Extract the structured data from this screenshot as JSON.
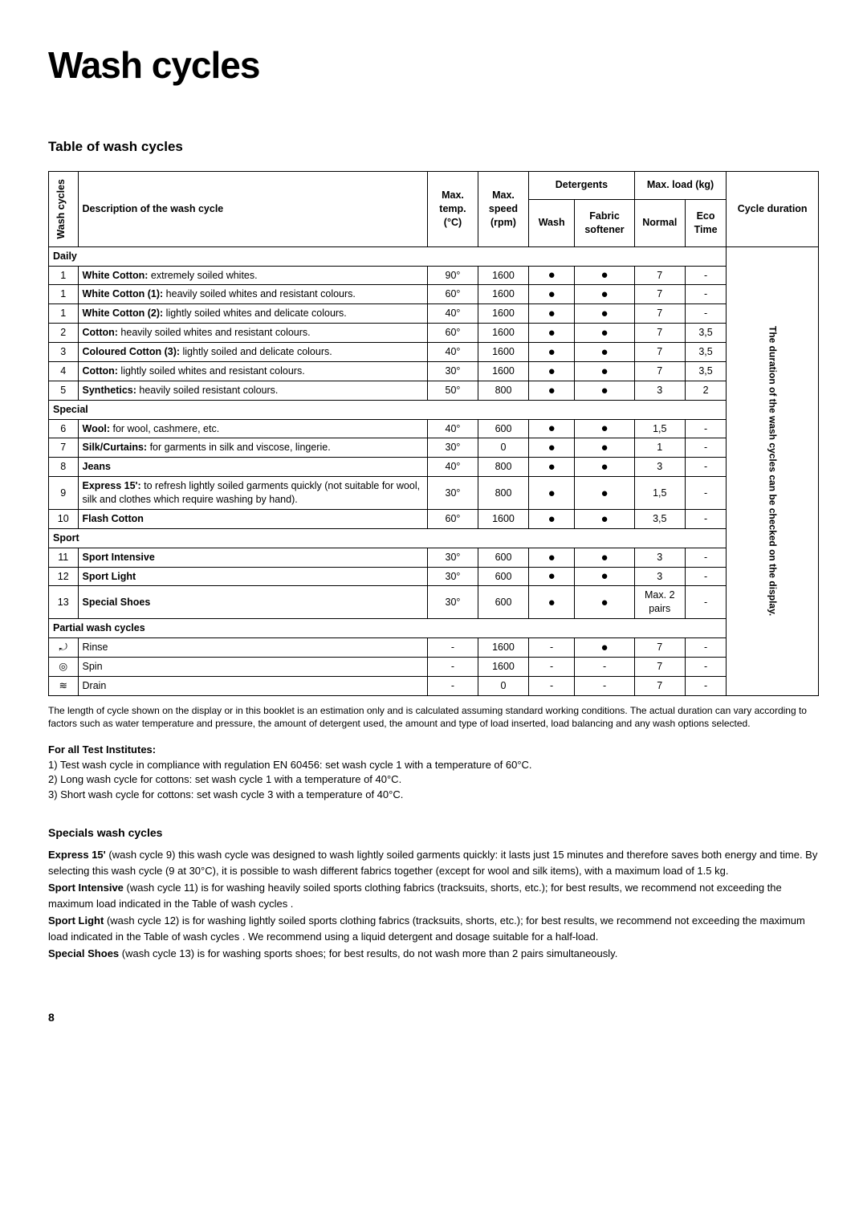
{
  "title": "Wash cycles",
  "tableHeading": "Table of wash cycles",
  "headers": {
    "washCycles": "Wash cycles",
    "description": "Description of the wash cycle",
    "maxTemp": "Max. temp. (°C)",
    "maxSpeed": "Max. speed (rpm)",
    "detergents": "Detergents",
    "wash": "Wash",
    "fabricSoftener": "Fabric softener",
    "maxLoad": "Max. load (kg)",
    "normal": "Normal",
    "ecoTime": "Eco Time",
    "cycleDuration": "Cycle duration"
  },
  "durationNote": "The duration of the wash cycles can be checked on the display.",
  "groups": [
    {
      "label": "Daily",
      "rows": [
        {
          "num": "1",
          "descBold": "White Cotton:",
          "descRest": " extremely soiled whites.",
          "temp": "90°",
          "speed": "1600",
          "wash": "●",
          "soft": "●",
          "normal": "7",
          "eco": "-"
        },
        {
          "num": "1",
          "descBold": "White Cotton (1):",
          "descRest": " heavily soiled whites and resistant colours.",
          "temp": "60°",
          "speed": "1600",
          "wash": "●",
          "soft": "●",
          "normal": "7",
          "eco": "-"
        },
        {
          "num": "1",
          "descBold": "White Cotton (2):",
          "descRest": " lightly soiled whites and delicate colours.",
          "temp": "40°",
          "speed": "1600",
          "wash": "●",
          "soft": "●",
          "normal": "7",
          "eco": "-"
        },
        {
          "num": "2",
          "descBold": "Cotton:",
          "descRest": " heavily soiled whites and resistant colours.",
          "temp": "60°",
          "speed": "1600",
          "wash": "●",
          "soft": "●",
          "normal": "7",
          "eco": "3,5"
        },
        {
          "num": "3",
          "descBold": "Coloured Cotton (3):",
          "descRest": " lightly soiled and delicate colours.",
          "temp": "40°",
          "speed": "1600",
          "wash": "●",
          "soft": "●",
          "normal": "7",
          "eco": "3,5"
        },
        {
          "num": "4",
          "descBold": "Cotton:",
          "descRest": " lightly soiled whites and resistant colours.",
          "temp": "30°",
          "speed": "1600",
          "wash": "●",
          "soft": "●",
          "normal": "7",
          "eco": "3,5"
        },
        {
          "num": "5",
          "descBold": "Synthetics:",
          "descRest": " heavily soiled resistant colours.",
          "temp": "50°",
          "speed": "800",
          "wash": "●",
          "soft": "●",
          "normal": "3",
          "eco": "2"
        }
      ]
    },
    {
      "label": "Special",
      "rows": [
        {
          "num": "6",
          "descBold": "Wool:",
          "descRest": " for wool, cashmere, etc.",
          "temp": "40°",
          "speed": "600",
          "wash": "●",
          "soft": "●",
          "normal": "1,5",
          "eco": "-"
        },
        {
          "num": "7",
          "descBold": "Silk/Curtains:",
          "descRest": " for garments in silk and viscose, lingerie.",
          "temp": "30°",
          "speed": "0",
          "wash": "●",
          "soft": "●",
          "normal": "1",
          "eco": "-"
        },
        {
          "num": "8",
          "descBold": "Jeans",
          "descRest": "",
          "temp": "40°",
          "speed": "800",
          "wash": "●",
          "soft": "●",
          "normal": "3",
          "eco": "-"
        },
        {
          "num": "9",
          "descBold": "Express 15':",
          "descRest": " to refresh lightly soiled garments quickly (not suitable for wool, silk and clothes which require washing by hand).",
          "temp": "30°",
          "speed": "800",
          "wash": "●",
          "soft": "●",
          "normal": "1,5",
          "eco": "-"
        },
        {
          "num": "10",
          "descBold": "Flash Cotton",
          "descRest": "",
          "temp": "60°",
          "speed": "1600",
          "wash": "●",
          "soft": "●",
          "normal": "3,5",
          "eco": "-"
        }
      ]
    },
    {
      "label": "Sport",
      "rows": [
        {
          "num": "11",
          "descBold": "Sport Intensive",
          "descRest": "",
          "temp": "30°",
          "speed": "600",
          "wash": "●",
          "soft": "●",
          "normal": "3",
          "eco": "-"
        },
        {
          "num": "12",
          "descBold": "Sport Light",
          "descRest": "",
          "temp": "30°",
          "speed": "600",
          "wash": "●",
          "soft": "●",
          "normal": "3",
          "eco": "-"
        },
        {
          "num": "13",
          "descBold": "Special Shoes",
          "descRest": "",
          "temp": "30°",
          "speed": "600",
          "wash": "●",
          "soft": "●",
          "normal": "Max. 2 pairs",
          "eco": "-"
        }
      ]
    },
    {
      "label": "Partial wash cycles",
      "rows": [
        {
          "num": "⤾",
          "descBold": "",
          "descRest": "Rinse",
          "temp": "-",
          "speed": "1600",
          "wash": "-",
          "soft": "●",
          "normal": "7",
          "eco": "-"
        },
        {
          "num": "◎",
          "descBold": "",
          "descRest": "Spin",
          "temp": "-",
          "speed": "1600",
          "wash": "-",
          "soft": "-",
          "normal": "7",
          "eco": "-"
        },
        {
          "num": "≋",
          "descBold": "",
          "descRest": "Drain",
          "temp": "-",
          "speed": "0",
          "wash": "-",
          "soft": "-",
          "normal": "7",
          "eco": "-"
        }
      ]
    }
  ],
  "footnote": "The length of cycle shown on the display or in this booklet is an estimation only and is calculated assuming standard working conditions. The actual duration can vary according to factors such as water temperature and pressure, the amount of detergent used, the amount and type of load inserted, load balancing and any wash options selected.",
  "institutes": {
    "heading": "For all Test Institutes:",
    "lines": [
      "1) Test wash cycle in compliance with regulation EN 60456: set wash cycle 1 with a temperature of 60°C.",
      "2) Long wash cycle for cottons: set wash cycle 1 with a temperature of 40°C.",
      "3) Short wash cycle for cottons: set wash cycle 3 with a temperature of 40°C."
    ]
  },
  "specials": {
    "heading": "Specials wash cycles",
    "paragraphs": [
      {
        "lead": "Express 15'",
        "rest": " (wash cycle 9) this wash cycle was designed to wash lightly soiled garments quickly: it lasts just 15 minutes and therefore saves both energy and time. By selecting this wash cycle (9 at 30°C), it is possible to wash different fabrics together (except for wool and silk items), with a maximum load of 1.5 kg."
      },
      {
        "lead": "Sport Intensive",
        "rest": " (wash cycle 11) is for washing heavily soiled sports clothing fabrics (tracksuits, shorts, etc.); for best results, we recommend not exceeding the maximum load indicated in the  Table of wash cycles ."
      },
      {
        "lead": "Sport Light",
        "rest": " (wash cycle 12) is for washing lightly soiled sports clothing fabrics (tracksuits, shorts, etc.); for best results, we recommend not exceeding the maximum load indicated in the  Table of wash cycles . We recommend using a liquid detergent and dosage suitable for a half-load."
      },
      {
        "lead": "Special Shoes",
        "rest": " (wash cycle 13) is for washing sports shoes; for best results, do not wash more than 2 pairs simultaneously."
      }
    ]
  },
  "pageNumber": "8"
}
